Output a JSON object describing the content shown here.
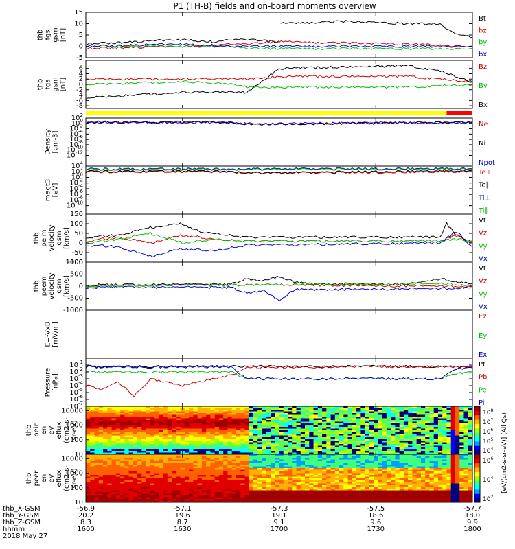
{
  "title": "P1 (TH-B) fields and on-board moments overview",
  "chart_data": [
    {
      "type": "line",
      "ylabel": [
        "thb",
        "fgs",
        "gsm",
        "[nT]"
      ],
      "ylim": [
        -5,
        15
      ],
      "yticks": [
        "15",
        "10",
        "5",
        "0",
        "-5"
      ],
      "ytick_values": [
        15,
        10,
        5,
        0,
        -5
      ],
      "series": [
        {
          "name": "Bt",
          "color": "#000000",
          "x": [
            1600,
            1615,
            1630,
            1640,
            1645,
            1650,
            1660,
            1700,
            1720,
            1740,
            1750,
            1754,
            1800
          ],
          "y": [
            1,
            2,
            3,
            2,
            3,
            3,
            2,
            10,
            11,
            10,
            10,
            6,
            4
          ]
        },
        {
          "name": "bz",
          "color": "#cc0000",
          "x": [
            1600,
            1630,
            1645,
            1650,
            1700,
            1740,
            1800
          ],
          "y": [
            -1,
            0,
            1,
            1,
            2,
            1,
            0
          ]
        },
        {
          "name": "by",
          "color": "#00bb00",
          "x": [
            1600,
            1630,
            1645,
            1650,
            1700,
            1740,
            1800
          ],
          "y": [
            0,
            0,
            0,
            -1,
            -1,
            -1,
            -1
          ]
        },
        {
          "name": "bx",
          "color": "#0000cc",
          "x": [
            1600,
            1630,
            1645,
            1650,
            1700,
            1740,
            1800
          ],
          "y": [
            0,
            1,
            0,
            0,
            0,
            0,
            0
          ]
        }
      ]
    },
    {
      "type": "line",
      "ylabel": [
        "thb",
        "fgs",
        "gsm",
        "[nT]"
      ],
      "ylim": [
        -9,
        9
      ],
      "yticks": [
        "6",
        "4",
        "2",
        "0",
        "-2",
        "-4",
        "-6",
        "-8"
      ],
      "ytick_values": [
        6,
        4,
        2,
        0,
        -2,
        -4,
        -6,
        -8
      ],
      "series": [
        {
          "name": "Bz",
          "color": "#cc0000",
          "x": [
            1600,
            1630,
            1645,
            1650,
            1700,
            1740,
            1800
          ],
          "y": [
            2,
            2,
            2,
            2,
            3,
            3,
            1
          ]
        },
        {
          "name": "By",
          "color": "#00bb00",
          "x": [
            1600,
            1630,
            1645,
            1650,
            1700,
            1740,
            1800
          ],
          "y": [
            0,
            1,
            0,
            -1,
            -1,
            -1,
            0
          ]
        },
        {
          "name": "Bx",
          "color": "#000000",
          "x": [
            1600,
            1615,
            1630,
            1645,
            1650,
            1700,
            1740,
            1750,
            1800
          ],
          "y": [
            -5,
            -4,
            -3,
            -3,
            -3,
            6,
            7,
            5,
            1
          ]
        }
      ]
    },
    {
      "type": "line",
      "ylabel": [
        "Density",
        "[cm-3]"
      ],
      "ylim": [
        -16,
        2
      ],
      "log": true,
      "yticks": [
        "10",
        "10",
        "10",
        "10",
        "10",
        "10",
        "10",
        "10"
      ],
      "ytick_values": [
        2,
        0,
        -2,
        -4,
        -6,
        -8,
        -10,
        -12
      ],
      "series": [
        {
          "name": "Ne",
          "color": "#cc0000",
          "x": [
            1600,
            1645,
            1650,
            1700,
            1750,
            1800
          ],
          "y": [
            0.5,
            0.5,
            -0.2,
            -0.2,
            0.4,
            0.5
          ]
        },
        {
          "name": "Ni",
          "color": "#000000",
          "x": [
            1600,
            1645,
            1650,
            1700,
            1750,
            1800
          ],
          "y": [
            0.4,
            0.4,
            -0.3,
            -0.3,
            0.3,
            0.4
          ]
        },
        {
          "name": "Npot",
          "color": "#0000cc",
          "x": [
            1600,
            1645,
            1650,
            1700,
            1750,
            1800
          ],
          "y": [
            0.3,
            0.3,
            -0.1,
            -0.1,
            0.3,
            0.3
          ]
        }
      ]
    },
    {
      "type": "line",
      "ylabel": [
        "magt3",
        "[eV]"
      ],
      "ylim": [
        -13,
        4
      ],
      "log": true,
      "yticks": [
        "10",
        "10",
        "10",
        "10",
        "10",
        "10",
        "10",
        "10"
      ],
      "ytick_values": [
        4,
        2,
        0,
        -2,
        -4,
        -6,
        -8,
        -10
      ],
      "series": [
        {
          "name": "Te⊥",
          "color": "#cc0000",
          "x": [
            1600,
            1645,
            1650,
            1700,
            1750,
            1800
          ],
          "y": [
            2,
            2,
            1.5,
            1.5,
            2,
            2
          ]
        },
        {
          "name": "Te∥",
          "color": "#000000",
          "x": [
            1600,
            1645,
            1650,
            1700,
            1750,
            1800
          ],
          "y": [
            2.2,
            2.2,
            1.6,
            1.6,
            2.4,
            2.3
          ]
        },
        {
          "name": "Ti⊥",
          "color": "#0000cc",
          "x": [
            1600,
            1645,
            1650,
            1700,
            1750,
            1800
          ],
          "y": [
            3,
            3,
            3,
            3,
            3.2,
            3
          ]
        },
        {
          "name": "Ti∥",
          "color": "#00bb00",
          "x": [
            1600,
            1645,
            1650,
            1700,
            1750,
            1800
          ],
          "y": [
            2.8,
            2.8,
            2.8,
            2.8,
            3,
            2.8
          ]
        }
      ]
    },
    {
      "type": "line",
      "ylabel": [
        "thb",
        "peim",
        "velocity",
        "gsm",
        "[km/s]"
      ],
      "ylim": [
        -100,
        150
      ],
      "yticks": [
        "150",
        "100",
        "50",
        "0",
        "-50",
        "-100"
      ],
      "ytick_values": [
        150,
        100,
        50,
        0,
        -50,
        -100
      ],
      "series": [
        {
          "name": "Vt",
          "color": "#000000",
          "x": [
            1600,
            1610,
            1620,
            1630,
            1635,
            1640,
            1650,
            1700,
            1750,
            1752,
            1755,
            1800
          ],
          "y": [
            30,
            40,
            80,
            100,
            60,
            50,
            30,
            30,
            30,
            100,
            40,
            10
          ]
        },
        {
          "name": "Vz",
          "color": "#cc0000",
          "x": [
            1600,
            1610,
            1620,
            1630,
            1640,
            1650,
            1700,
            1750,
            1755,
            1800
          ],
          "y": [
            10,
            30,
            0,
            40,
            20,
            10,
            10,
            10,
            40,
            0
          ]
        },
        {
          "name": "Vy",
          "color": "#00bb00",
          "x": [
            1600,
            1610,
            1620,
            1630,
            1640,
            1650,
            1700,
            1750,
            1755,
            1800
          ],
          "y": [
            0,
            20,
            50,
            0,
            20,
            10,
            10,
            10,
            20,
            10
          ]
        },
        {
          "name": "Vx",
          "color": "#0000cc",
          "x": [
            1600,
            1610,
            1620,
            1630,
            1640,
            1650,
            1700,
            1750,
            1755,
            1800
          ],
          "y": [
            -10,
            -20,
            -70,
            -30,
            -40,
            -10,
            -10,
            0,
            60,
            -20
          ]
        }
      ]
    },
    {
      "type": "line",
      "ylabel": [
        "thb",
        "peem",
        "velocity",
        "gsm",
        "[km/s]"
      ],
      "ylim": [
        -1000,
        1000
      ],
      "yticks": [
        "1000",
        "500",
        "0",
        "-500",
        "-1000"
      ],
      "ytick_values": [
        1000,
        500,
        0,
        -500,
        -1000
      ],
      "series": [
        {
          "name": "Vt",
          "color": "#000000",
          "x": [
            1600,
            1645,
            1650,
            1655,
            1700,
            1705,
            1710,
            1740,
            1750,
            1800
          ],
          "y": [
            50,
            80,
            300,
            200,
            400,
            150,
            100,
            80,
            300,
            100
          ]
        },
        {
          "name": "Vz",
          "color": "#cc0000",
          "x": [
            1600,
            1650,
            1700,
            1750,
            1800
          ],
          "y": [
            0,
            50,
            50,
            0,
            0
          ]
        },
        {
          "name": "Vy",
          "color": "#00bb00",
          "x": [
            1600,
            1650,
            1700,
            1750,
            1800
          ],
          "y": [
            0,
            50,
            50,
            100,
            50
          ]
        },
        {
          "name": "Vx",
          "color": "#0000cc",
          "x": [
            1600,
            1645,
            1650,
            1655,
            1700,
            1705,
            1750,
            1800
          ],
          "y": [
            -50,
            -50,
            -300,
            -200,
            -600,
            -150,
            -100,
            -50
          ]
        }
      ]
    },
    {
      "type": "line",
      "ylabel": [
        "E=-VxB",
        "[mV/m]"
      ],
      "series": [
        {
          "name": "Ez",
          "color": "#cc0000"
        },
        {
          "name": "Ey",
          "color": "#00bb00"
        },
        {
          "name": "Ex",
          "color": "#0000cc"
        }
      ]
    },
    {
      "type": "line",
      "ylabel": [
        "Pressure",
        "[nPa]"
      ],
      "ylim": [
        -7,
        0
      ],
      "log": true,
      "yticks": [
        "10",
        "10",
        "10",
        "10",
        "10",
        "10",
        "10"
      ],
      "ytick_values": [
        -1,
        -2,
        -3,
        -4,
        -5,
        -6,
        -7
      ],
      "series": [
        {
          "name": "Pt",
          "color": "#000000",
          "x": [
            1600,
            1800
          ],
          "y": [
            -1.2,
            -1.2
          ]
        },
        {
          "name": "Pb",
          "color": "#cc0000",
          "x": [
            1600,
            1605,
            1610,
            1615,
            1620,
            1630,
            1640,
            1645,
            1650,
            1700,
            1750,
            1800
          ],
          "y": [
            -4,
            -4.5,
            -3.5,
            -5.5,
            -3,
            -4,
            -3,
            -2.5,
            -1.4,
            -1.3,
            -1.2,
            -1.3
          ]
        },
        {
          "name": "Pe",
          "color": "#00bb00",
          "x": [
            1600,
            1645,
            1650,
            1700,
            1750,
            1755,
            1800
          ],
          "y": [
            -2,
            -2,
            -3,
            -3,
            -3,
            -2.2,
            -2
          ]
        },
        {
          "name": "Pi",
          "color": "#0000cc",
          "x": [
            1600,
            1645,
            1650,
            1700,
            1750,
            1755,
            1800
          ],
          "y": [
            -1.3,
            -1.3,
            -3,
            -3,
            -3,
            -1.5,
            -1.4
          ]
        }
      ]
    },
    {
      "type": "heatmap",
      "ylabel": [
        "thb",
        "peir",
        "en",
        "eV",
        "eflux",
        "(cm2-s-",
        "sr-eV)"
      ],
      "ylim": [
        10,
        20000
      ],
      "log": true,
      "yticks": [
        "10000",
        "1000",
        "100",
        "10"
      ],
      "ytick_values": [
        10000,
        1000,
        100,
        10
      ],
      "colorbar": {
        "ticks": [
          "10",
          "10",
          "10",
          "10",
          "10"
        ],
        "exponents": [
          "8",
          "7",
          "6",
          "5",
          "4"
        ]
      }
    },
    {
      "type": "heatmap",
      "ylabel": [
        "thb",
        "peer",
        "en",
        "eV",
        "eflux",
        "(cm2-s-",
        "sr-eV)"
      ],
      "ylim": [
        10,
        20000
      ],
      "log": true,
      "yticks": [
        "10000",
        "1000",
        "100",
        "10"
      ],
      "ytick_values": [
        10000,
        1000,
        100,
        10
      ],
      "colorbar": {
        "ticks": [
          "10",
          "10",
          "10"
        ],
        "exponents": [
          "6",
          "4",
          "2"
        ]
      }
    }
  ],
  "colorbar_label": "[eV/(cm2-s-sr-eV)] (All Qs)",
  "x_axis": {
    "range": [
      1600,
      1800
    ],
    "tick_values": [
      1600,
      1630,
      1700,
      1730,
      1800
    ],
    "rows": [
      {
        "label": "thb_X-GSM",
        "values": [
          "-56.9",
          "-57.1",
          "-57.3",
          "-57.5",
          "-57.7"
        ]
      },
      {
        "label": "thb_Y-GSM",
        "values": [
          "20.2",
          "19.6",
          "19.1",
          "18.6",
          "18.0"
        ]
      },
      {
        "label": "thb_Z-GSM",
        "values": [
          "8.3",
          "8.7",
          "9.1",
          "9.6",
          "9.9"
        ]
      },
      {
        "label": "hhmm",
        "values": [
          "1600",
          "1630",
          "1700",
          "1730",
          "1800"
        ]
      }
    ],
    "date": "2018 May 27"
  }
}
